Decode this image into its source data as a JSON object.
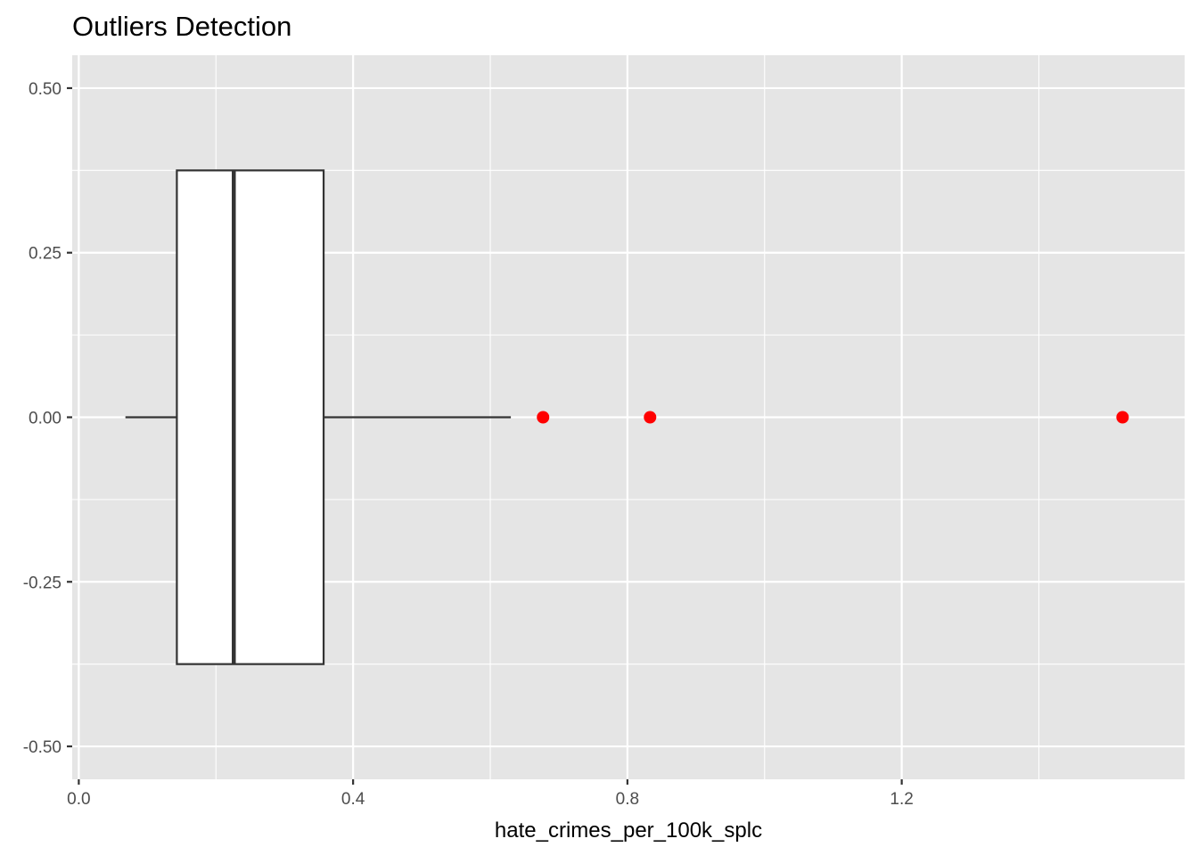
{
  "chart_data": {
    "type": "boxplot",
    "title": "Outliers Detection",
    "xlabel": "hate_crimes_per_100k_splc",
    "ylabel": "",
    "xlim": [
      -0.0096,
      1.6125
    ],
    "ylim": [
      -0.55,
      0.55
    ],
    "x_ticks": [
      {
        "value": 0.0,
        "label": "0.0"
      },
      {
        "value": 0.4,
        "label": "0.4"
      },
      {
        "value": 0.8,
        "label": "0.8"
      },
      {
        "value": 1.2,
        "label": "1.2"
      }
    ],
    "x_minor_ticks": [
      0.2,
      0.6,
      1.0,
      1.4
    ],
    "y_ticks": [
      {
        "value": 0.5,
        "label": "0.50"
      },
      {
        "value": 0.25,
        "label": "0.25"
      },
      {
        "value": 0.0,
        "label": "0.00"
      },
      {
        "value": -0.25,
        "label": "-0.25"
      },
      {
        "value": -0.5,
        "label": "-0.50"
      }
    ],
    "y_minor_ticks": [
      0.375,
      0.125,
      -0.125,
      -0.375
    ],
    "grid": true,
    "box": {
      "whisker_low": 0.068,
      "q1": 0.143,
      "median": 0.226,
      "q3": 0.357,
      "whisker_high": 0.63,
      "y_low": -0.375,
      "y_high": 0.375,
      "y_center": 0.0
    },
    "outliers": [
      0.677,
      0.833,
      1.522
    ],
    "colors": {
      "panel": "#e5e5e5",
      "grid": "#ffffff",
      "box_fill": "#ffffff",
      "box_line": "#333333",
      "outlier": "#ff0000"
    }
  }
}
